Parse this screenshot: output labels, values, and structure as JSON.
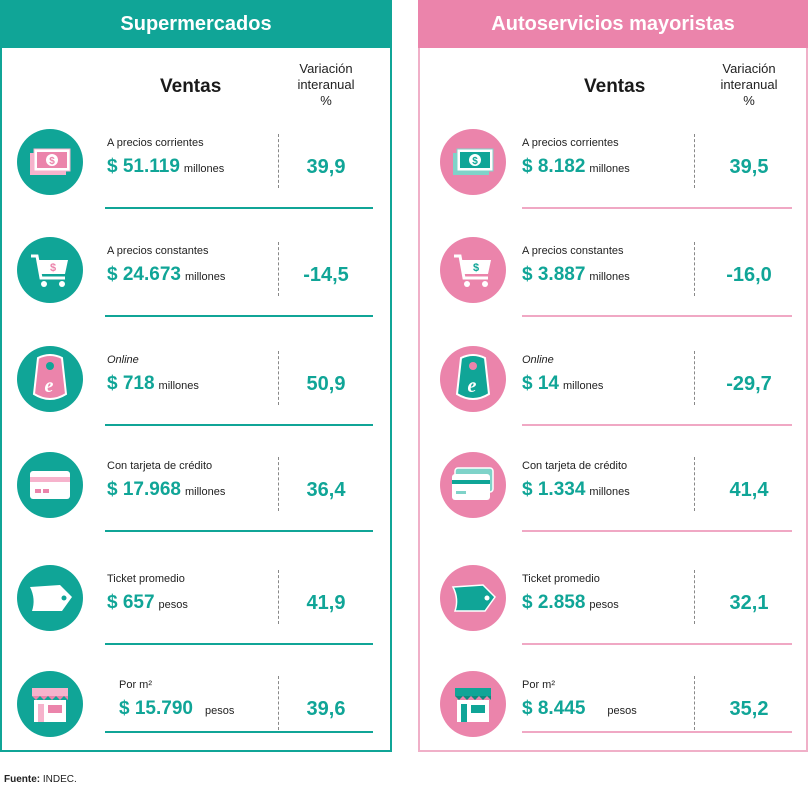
{
  "left_panel": {
    "title": "Supermercados",
    "col_ventas": "Ventas",
    "col_var_1": "Variación",
    "col_var_2": "interanual",
    "col_var_3": "%",
    "rows": [
      {
        "label": "A precios corrientes",
        "value": "$ 51.119",
        "unit": "millones",
        "variation": "39,9",
        "icon": "money-icon"
      },
      {
        "label": "A precios constantes",
        "value": "$ 24.673",
        "unit": "millones",
        "variation": "-14,5",
        "icon": "cart-icon"
      },
      {
        "label": "Online",
        "value": "$ 718",
        "unit": "millones",
        "variation": "50,9",
        "icon": "ecommerce-bag-icon"
      },
      {
        "label": "Con tarjeta de crédito",
        "value": "$ 17.968",
        "unit": "millones",
        "variation": "36,4",
        "icon": "credit-card-icon"
      },
      {
        "label": "Ticket promedio",
        "value": "$ 657",
        "unit": "pesos",
        "variation": "41,9",
        "icon": "ticket-icon"
      },
      {
        "label": "Por m²",
        "value": "$ 15.790",
        "unit": "pesos",
        "variation": "39,6",
        "icon": "store-icon"
      }
    ]
  },
  "right_panel": {
    "title": "Autoservicios mayoristas",
    "col_ventas": "Ventas",
    "col_var_1": "Variación",
    "col_var_2": "interanual",
    "col_var_3": "%",
    "rows": [
      {
        "label": "A precios corrientes",
        "value": "$ 8.182",
        "unit": "millones",
        "variation": "39,5",
        "icon": "money-icon"
      },
      {
        "label": "A precios constantes",
        "value": "$ 3.887",
        "unit": "millones",
        "variation": "-16,0",
        "icon": "cart-icon"
      },
      {
        "label": "Online",
        "value": "$ 14",
        "unit": "millones",
        "variation": "-29,7",
        "icon": "ecommerce-bag-icon"
      },
      {
        "label": "Con tarjeta de crédito",
        "value": "$ 1.334",
        "unit": "millones",
        "variation": "41,4",
        "icon": "credit-card-icon"
      },
      {
        "label": "Ticket promedio",
        "value": "$ 2.858",
        "unit": "pesos",
        "variation": "32,1",
        "icon": "ticket-icon"
      },
      {
        "label": "Por m²",
        "value": "$ 8.445",
        "unit": "pesos",
        "variation": "35,2",
        "icon": "store-icon"
      }
    ]
  },
  "footer": {
    "source_label": "Fuente:",
    "source_value": "INDEC."
  },
  "colors": {
    "teal": "#10a597",
    "pink": "#eb84ab"
  }
}
